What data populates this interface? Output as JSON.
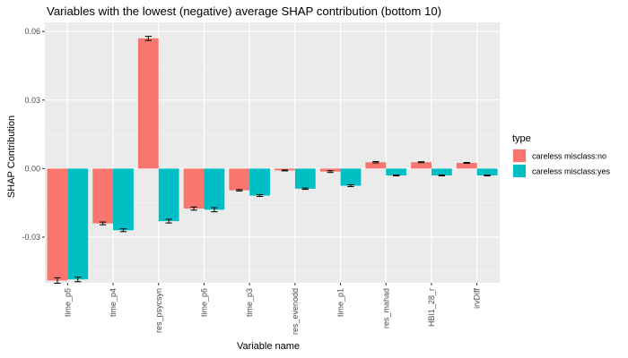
{
  "chart_data": {
    "type": "bar",
    "title": "Variables with the lowest (negative) average SHAP contribution (bottom 10)",
    "xlabel": "Variable name",
    "ylabel": "SHAP Contribution",
    "ylim": [
      -0.05,
      0.064
    ],
    "yticks": [
      -0.03,
      0.0,
      0.03,
      0.06
    ],
    "ytick_labels": [
      "-0.03",
      "0.00",
      "0.03",
      "0.06"
    ],
    "grid": true,
    "legend_position": "right",
    "legend_title": "type",
    "categories": [
      "time_p5",
      "time_p4",
      "res_psycsyn",
      "time_p6",
      "time_p3",
      "res_evenodd",
      "time_p1",
      "res_mahad",
      "HBI1_28_r",
      "irvDiff"
    ],
    "series": [
      {
        "name": "careless misclass:no",
        "color": "#F8766D",
        "values": [
          -0.049,
          -0.024,
          0.057,
          -0.0175,
          -0.0095,
          -0.0008,
          -0.0013,
          0.0028,
          0.0028,
          0.0025
        ],
        "errors": [
          0.0012,
          0.0006,
          0.0009,
          0.0007,
          0.0003,
          0.0002,
          0.0004,
          0.0003,
          0.0002,
          0.0002
        ]
      },
      {
        "name": "careless misclass:yes",
        "color": "#00BFC4",
        "values": [
          -0.0485,
          -0.027,
          -0.023,
          -0.018,
          -0.0118,
          -0.0088,
          -0.0075,
          -0.003,
          -0.003,
          -0.003
        ],
        "errors": [
          0.001,
          0.0006,
          0.0008,
          0.0009,
          0.0004,
          0.0003,
          0.0004,
          0.0002,
          0.0002,
          0.0002
        ]
      }
    ],
    "style": {
      "panel_bg": "#EBEBEB",
      "grid_color": "#FFFFFF",
      "axis_text_color": "#4D4D4D",
      "text_color": "#000000"
    }
  }
}
